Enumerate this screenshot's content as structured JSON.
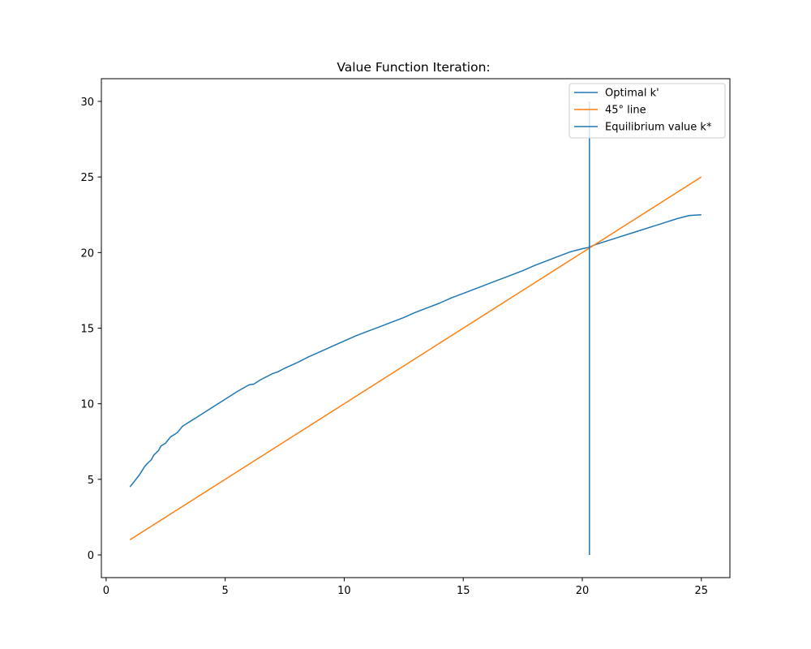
{
  "chart_data": {
    "type": "line",
    "title": "Value Function Iteration:",
    "xlabel": "",
    "ylabel": "",
    "xlim": [
      -0.2,
      26.2
    ],
    "ylim": [
      -1.5,
      31.5
    ],
    "x_ticks": [
      0,
      5,
      10,
      15,
      20,
      25
    ],
    "y_ticks": [
      0,
      5,
      10,
      15,
      20,
      25,
      30
    ],
    "grid": false,
    "legend_position": "top-right",
    "series": [
      {
        "name": "Optimal k'",
        "kind": "line",
        "color": "#1f77b4",
        "x": [
          1.0,
          1.2,
          1.4,
          1.6,
          1.7,
          1.9,
          2.0,
          2.2,
          2.3,
          2.5,
          2.7,
          2.9,
          3.0,
          3.2,
          3.4,
          3.6,
          3.8,
          4.0,
          4.1,
          4.5,
          5.0,
          5.5,
          6.0,
          6.2,
          6.5,
          7.0,
          7.2,
          7.5,
          8.0,
          8.5,
          9.0,
          9.5,
          10.0,
          10.5,
          11.0,
          11.5,
          12.0,
          12.5,
          13.0,
          13.5,
          14.0,
          14.5,
          15.0,
          15.5,
          16.0,
          16.5,
          17.0,
          17.5,
          18.0,
          18.5,
          19.0,
          19.5,
          20.0,
          20.3,
          20.5,
          21.0,
          21.5,
          22.0,
          22.5,
          23.0,
          23.5,
          24.0,
          24.5,
          25.0
        ],
        "y": [
          4.5,
          4.9,
          5.3,
          5.8,
          6.0,
          6.3,
          6.6,
          6.9,
          7.2,
          7.4,
          7.8,
          8.0,
          8.1,
          8.5,
          8.7,
          8.9,
          9.1,
          9.3,
          9.4,
          9.8,
          10.3,
          10.8,
          11.25,
          11.3,
          11.6,
          12.0,
          12.1,
          12.35,
          12.7,
          13.1,
          13.45,
          13.8,
          14.15,
          14.5,
          14.8,
          15.1,
          15.4,
          15.7,
          16.05,
          16.35,
          16.65,
          17.0,
          17.3,
          17.6,
          17.9,
          18.2,
          18.5,
          18.8,
          19.15,
          19.45,
          19.75,
          20.05,
          20.25,
          20.35,
          20.5,
          20.75,
          21.0,
          21.25,
          21.5,
          21.75,
          22.0,
          22.25,
          22.45,
          22.5
        ]
      },
      {
        "name": "45° line",
        "kind": "line",
        "color": "#ff7f0e",
        "x": [
          1,
          25
        ],
        "y": [
          1,
          25
        ]
      },
      {
        "name": "Equilibrium value k*",
        "kind": "vline",
        "color": "#1f77b4",
        "x_value": 20.3,
        "y_range": [
          0,
          30
        ]
      }
    ]
  }
}
